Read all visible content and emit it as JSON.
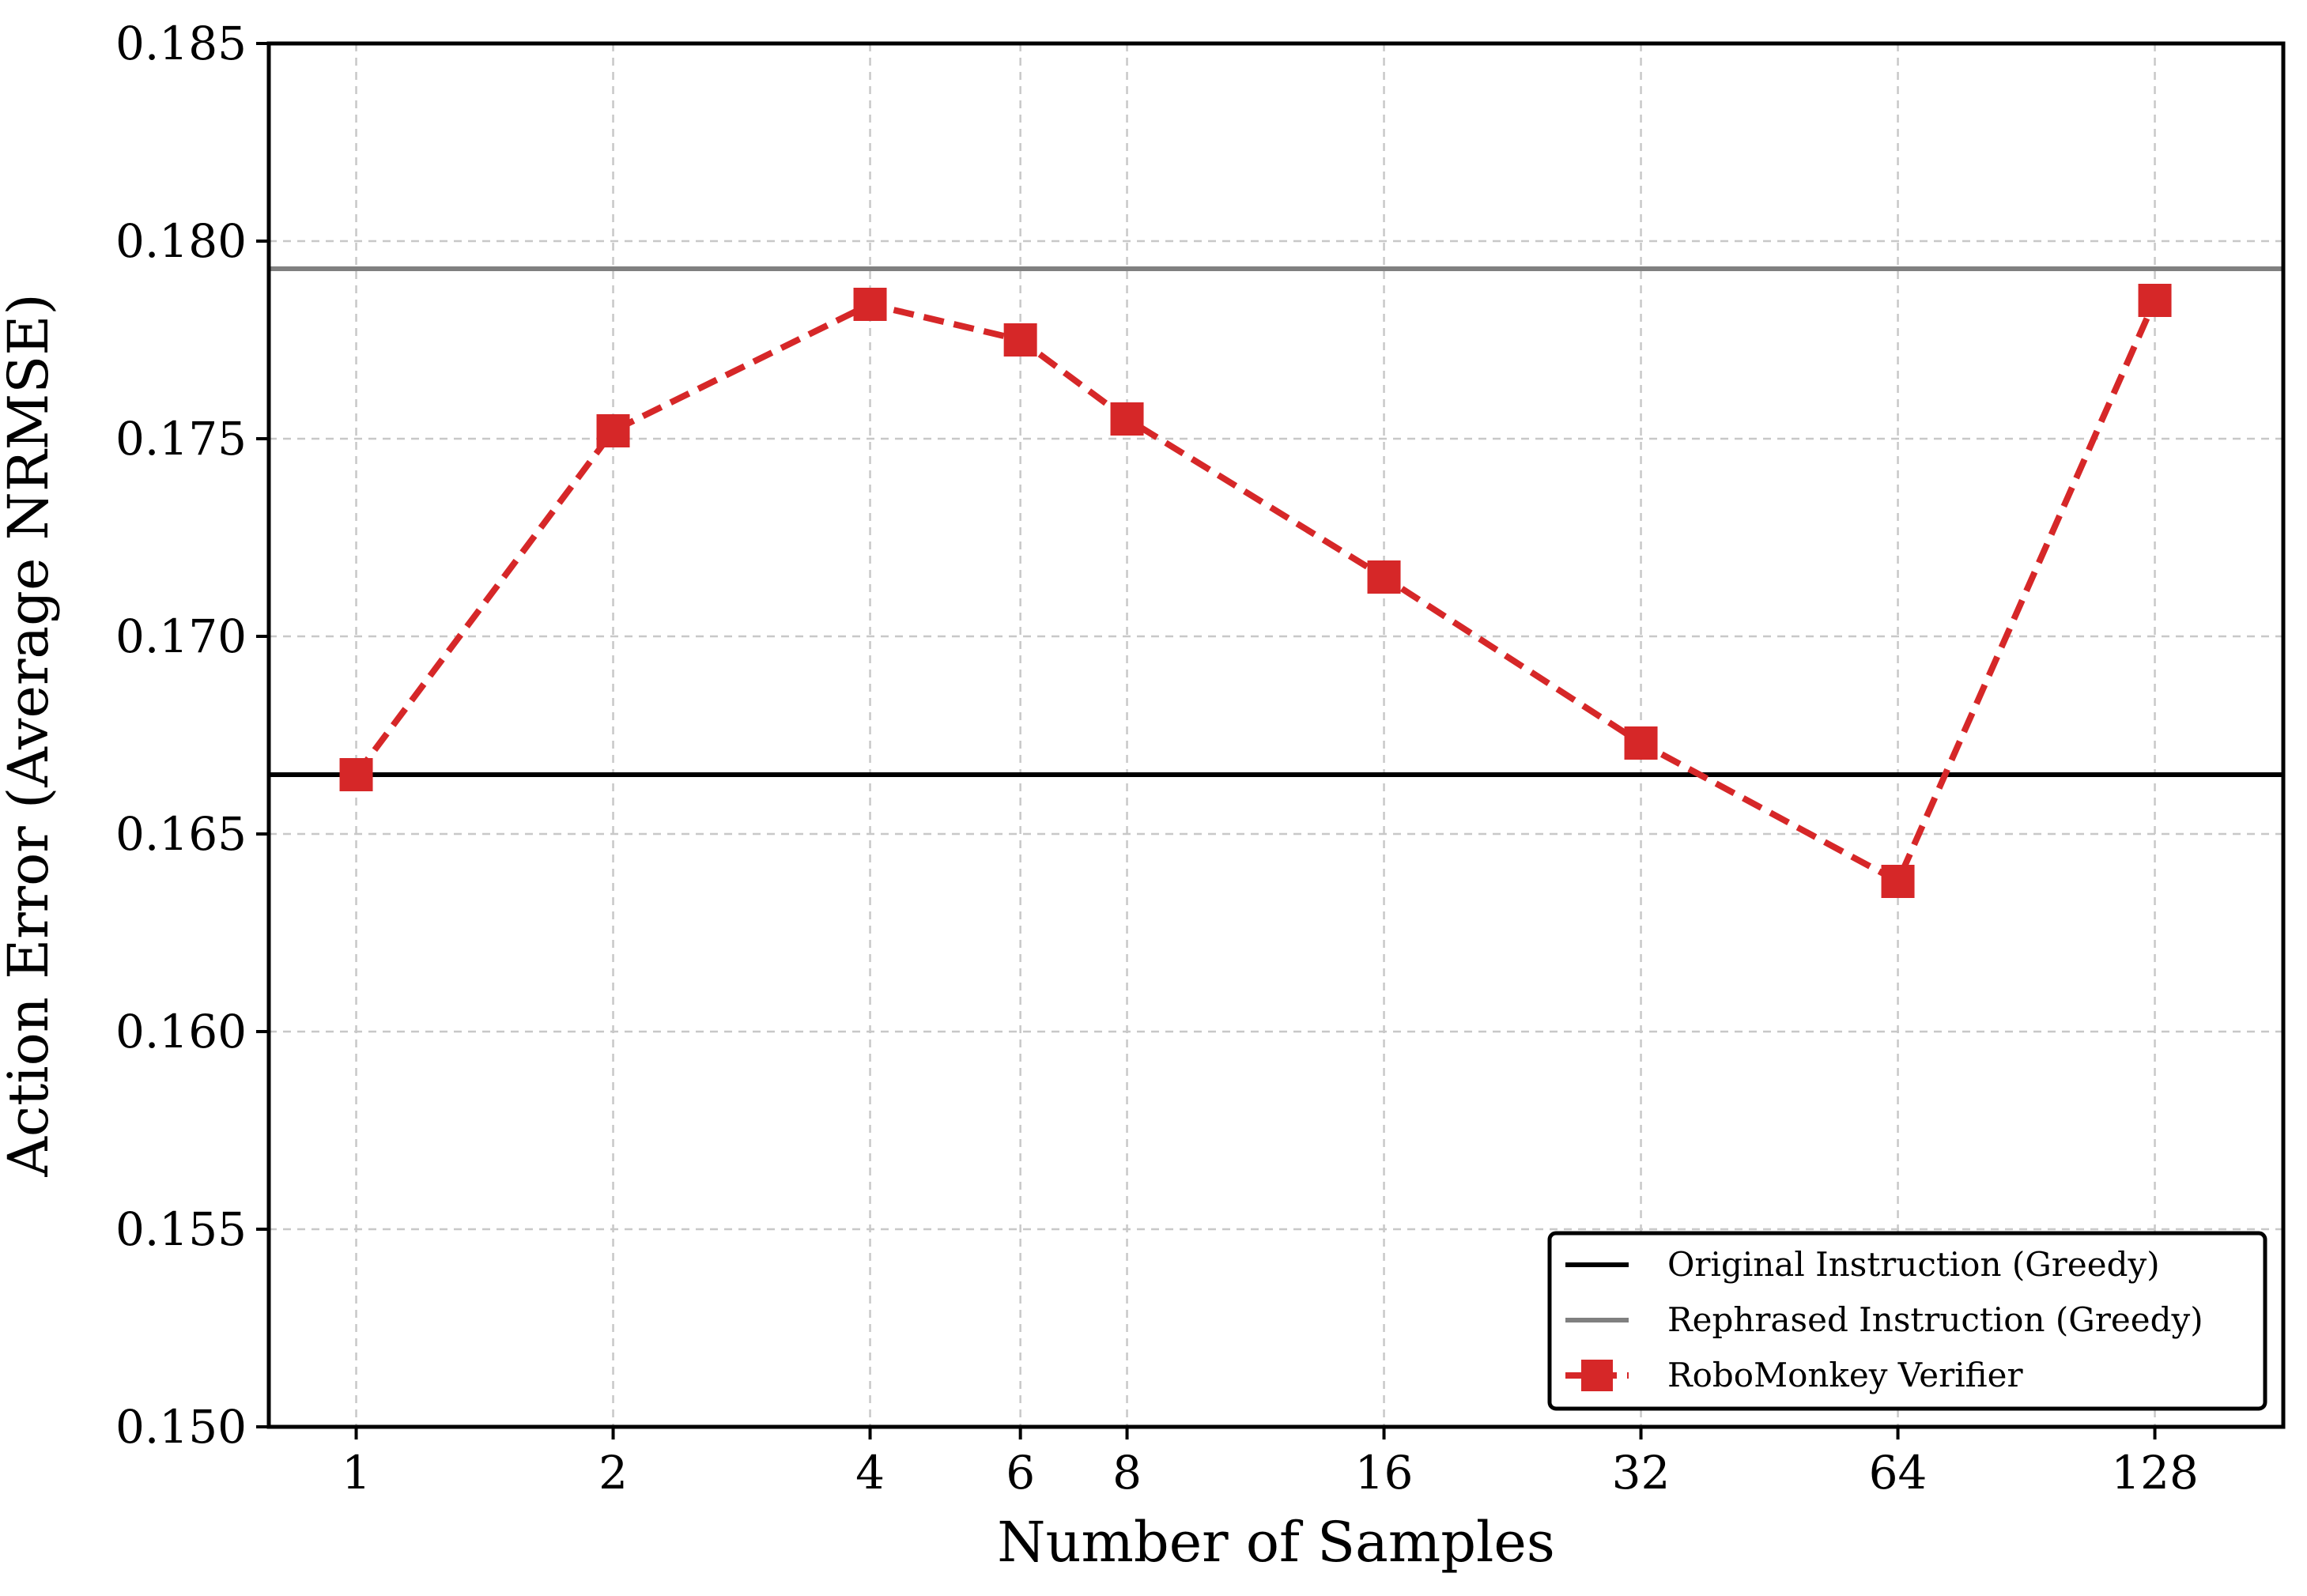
{
  "chart_data": {
    "type": "line",
    "title": "",
    "xlabel": "Number of Samples",
    "ylabel": "Action Error (Average NRMSE)",
    "x_scale": "log2",
    "x_ticks": [
      1,
      2,
      4,
      6,
      8,
      16,
      32,
      64,
      128
    ],
    "x_tick_labels": [
      "1",
      "2",
      "4",
      "6",
      "8",
      "16",
      "32",
      "64",
      "128"
    ],
    "xlim": [
      0.79,
      181
    ],
    "ylim": [
      0.15,
      0.185
    ],
    "y_ticks": [
      0.15,
      0.155,
      0.16,
      0.165,
      0.17,
      0.175,
      0.18,
      0.185
    ],
    "y_tick_labels": [
      "0.150",
      "0.155",
      "0.160",
      "0.165",
      "0.170",
      "0.175",
      "0.180",
      "0.185"
    ],
    "grid": true,
    "legend_position": "lower-right",
    "reference_lines": [
      {
        "name": "Original Instruction (Greedy)",
        "y": 0.1665,
        "color": "#000000"
      },
      {
        "name": "Rephrased Instruction (Greedy)",
        "y": 0.1793,
        "color": "#808080"
      }
    ],
    "series": [
      {
        "name": "RoboMonkey Verifier",
        "color": "#d62728",
        "line_style": "dashed",
        "marker": "square",
        "x": [
          1,
          2,
          4,
          6,
          8,
          16,
          32,
          64,
          128
        ],
        "y": [
          0.1665,
          0.1752,
          0.1784,
          0.1775,
          0.1755,
          0.1715,
          0.1673,
          0.1638,
          0.1785
        ]
      }
    ]
  }
}
